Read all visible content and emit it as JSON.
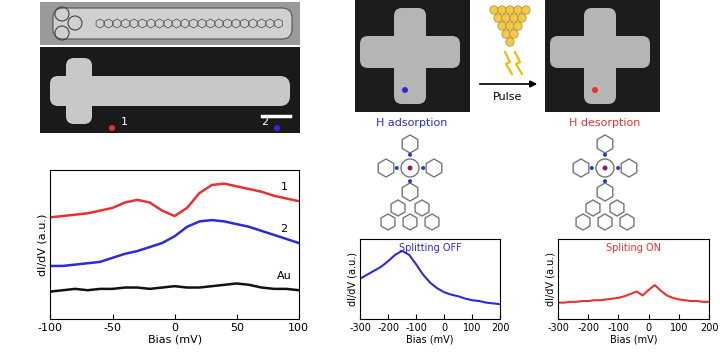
{
  "chart_data": [
    {
      "type": "line",
      "x": [
        -100,
        -90,
        -80,
        -70,
        -60,
        -50,
        -40,
        -30,
        -20,
        -10,
        0,
        10,
        20,
        30,
        40,
        50,
        60,
        70,
        80,
        90,
        100
      ],
      "xlim": [
        -100,
        100
      ],
      "xticks": [
        -100,
        -50,
        0,
        50,
        100
      ],
      "ylim": [
        0,
        11
      ],
      "tick_labels": "x",
      "x_label": "Bias (mV)",
      "y_label": "dI/dV (a.u.)",
      "series": [
        {
          "name": "1",
          "color": "#e8322f",
          "values": [
            7.5,
            7.6,
            7.7,
            7.8,
            8.0,
            8.2,
            8.6,
            8.8,
            8.6,
            8.0,
            7.6,
            8.2,
            9.3,
            9.9,
            10.0,
            9.8,
            9.6,
            9.4,
            9.1,
            8.9,
            8.7
          ]
        },
        {
          "name": "2",
          "color": "#2b2bd9",
          "values": [
            3.9,
            3.9,
            4.0,
            4.1,
            4.2,
            4.5,
            4.8,
            5.0,
            5.3,
            5.6,
            6.1,
            6.8,
            7.2,
            7.3,
            7.2,
            7.0,
            6.8,
            6.5,
            6.2,
            5.9,
            5.6
          ]
        },
        {
          "name": "Au",
          "color": "#111111",
          "values": [
            2.0,
            2.1,
            2.2,
            2.1,
            2.2,
            2.2,
            2.3,
            2.3,
            2.2,
            2.3,
            2.4,
            2.3,
            2.3,
            2.4,
            2.5,
            2.6,
            2.5,
            2.3,
            2.2,
            2.2,
            2.1
          ]
        }
      ]
    },
    {
      "type": "line",
      "title": "Splitting OFF",
      "x": [
        -300,
        -275,
        -250,
        -225,
        -200,
        -175,
        -150,
        -125,
        -100,
        -75,
        -50,
        -25,
        0,
        25,
        50,
        75,
        100,
        125,
        150,
        175,
        200
      ],
      "xlim": [
        -300,
        200
      ],
      "xticks": [
        -300,
        -200,
        -100,
        0,
        100,
        200
      ],
      "ylim": [
        0,
        10
      ],
      "tick_labels": "x",
      "x_label": "Bias (mV)",
      "y_label": "dI/dV (a.u.)",
      "series": [
        {
          "color": "#2b2bd9",
          "values": [
            5.0,
            5.5,
            6.0,
            6.5,
            7.2,
            8.0,
            8.5,
            8.0,
            6.8,
            5.5,
            4.5,
            3.8,
            3.3,
            3.0,
            2.8,
            2.5,
            2.3,
            2.2,
            2.0,
            1.9,
            1.8
          ]
        }
      ]
    },
    {
      "type": "line",
      "title": "Spliting ON",
      "x": [
        -300,
        -280,
        -260,
        -240,
        -220,
        -200,
        -180,
        -160,
        -140,
        -120,
        -100,
        -80,
        -60,
        -40,
        -20,
        0,
        20,
        40,
        60,
        80,
        100,
        120,
        140,
        160,
        180,
        200
      ],
      "xlim": [
        -300,
        200
      ],
      "xticks": [
        -300,
        -200,
        -100,
        0,
        100,
        200
      ],
      "ylim": [
        0,
        10
      ],
      "tick_labels": "x",
      "x_label": "Bias (mV)",
      "y_label": "dI/dV (a.u.)",
      "series": [
        {
          "color": "#e8322f",
          "values": [
            2.0,
            2.0,
            2.1,
            2.1,
            2.2,
            2.2,
            2.3,
            2.3,
            2.4,
            2.5,
            2.6,
            2.8,
            3.1,
            3.4,
            2.9,
            3.6,
            4.2,
            3.5,
            2.9,
            2.6,
            2.4,
            2.3,
            2.2,
            2.2,
            2.1,
            2.1
          ]
        }
      ]
    }
  ],
  "annotations": {
    "stm_points": [
      "1",
      "2"
    ],
    "pulse": "Pulse",
    "adsorption": "H adsorption",
    "desorption": "H desorption"
  }
}
